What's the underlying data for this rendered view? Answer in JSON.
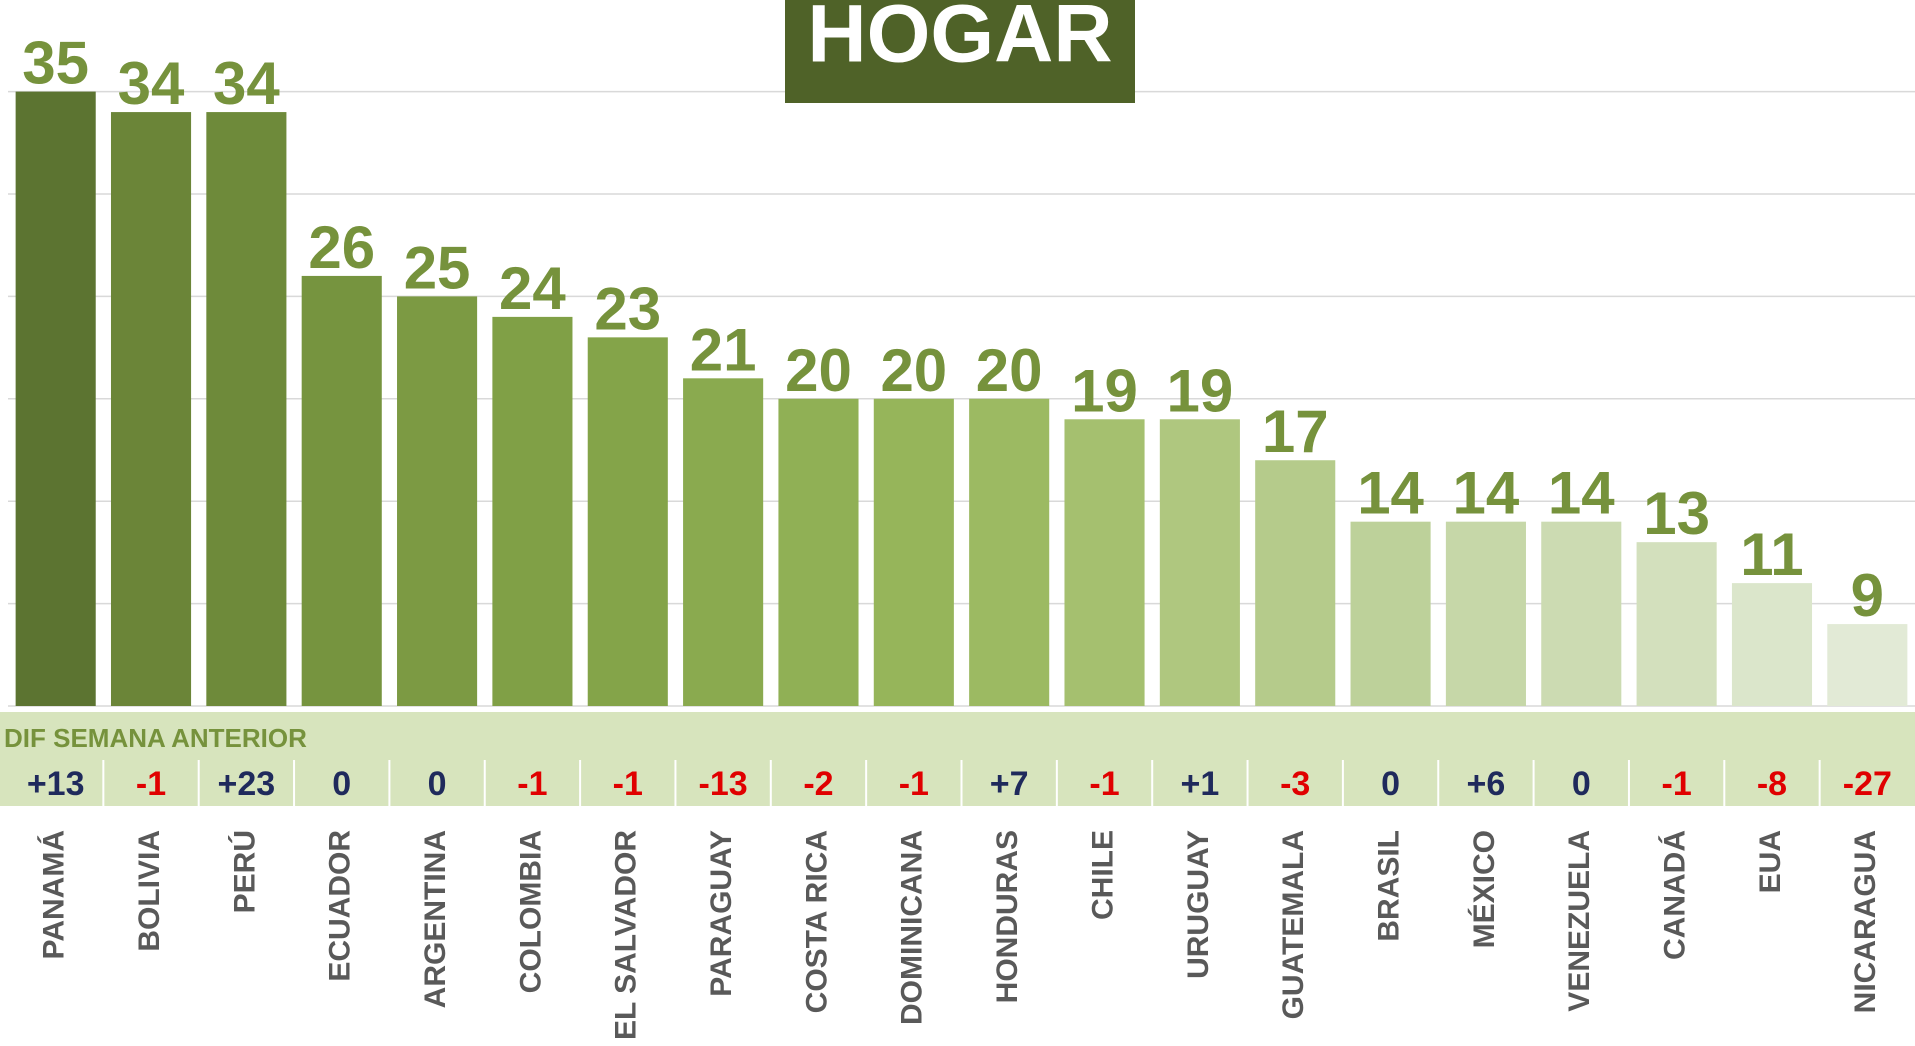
{
  "chart_data": {
    "type": "bar",
    "title": "HOGAR",
    "categories": [
      "PANAMÁ",
      "BOLIVIA",
      "PERÚ",
      "ECUADOR",
      "ARGENTINA",
      "COLOMBIA",
      "EL SALVADOR",
      "PARAGUAY",
      "COSTA RICA",
      "DOMINICANA",
      "HONDURAS",
      "CHILE",
      "URUGUAY",
      "GUATEMALA",
      "BRASIL",
      "MÉXICO",
      "VENEZUELA",
      "CANADÁ",
      "EUA",
      "NICARAGUA"
    ],
    "values": [
      35,
      34,
      34,
      26,
      25,
      24,
      23,
      21,
      20,
      20,
      20,
      19,
      19,
      17,
      14,
      14,
      14,
      13,
      11,
      9
    ],
    "colors": [
      "#5c7431",
      "#6b8538",
      "#6e8a3a",
      "#76943f",
      "#7c9a43",
      "#80a046",
      "#84a449",
      "#8aaa4f",
      "#90b055",
      "#96b55a",
      "#9cba62",
      "#a5c06f",
      "#afc77f",
      "#b5cb8b",
      "#bdd19a",
      "#c6d7a8",
      "#ccdbb2",
      "#d3e0bd",
      "#dbe6cb",
      "#e2ead6"
    ],
    "label_color": "#76923c",
    "ylim": [
      5,
      35
    ],
    "yticks": [
      5,
      10,
      15,
      20,
      25,
      30,
      35
    ],
    "grid": true,
    "diff": {
      "title": "DIF SEMANA ANTERIOR",
      "values": [
        13,
        -1,
        23,
        0,
        0,
        -1,
        -1,
        -13,
        -2,
        -1,
        7,
        -1,
        1,
        -3,
        0,
        6,
        0,
        -1,
        -8,
        -27
      ],
      "value_labels": [
        "+13",
        "-1",
        "+23",
        "0",
        "0",
        "-1",
        "-1",
        "-13",
        "-2",
        "-1",
        "+7",
        "-1",
        "+1",
        "-3",
        "0",
        "+6",
        "0",
        "-1",
        "-8",
        "-27"
      ],
      "positive_color": "#1f2a5c",
      "negative_color": "#e00000"
    }
  }
}
